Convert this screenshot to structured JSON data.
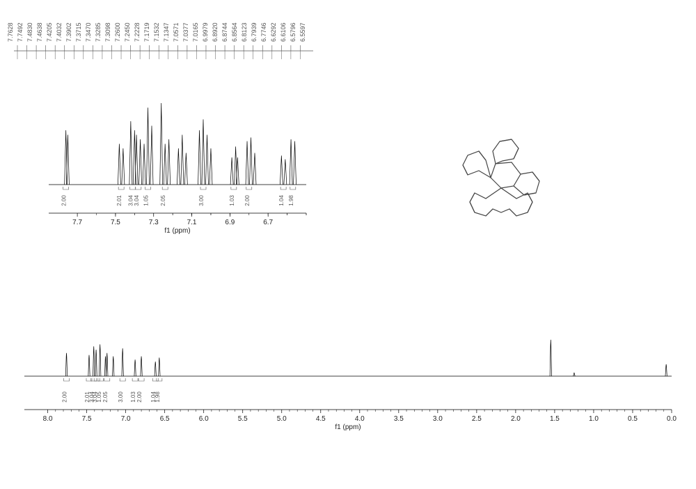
{
  "peak_values": [
    "7.7628",
    "7.7492",
    "7.4830",
    "7.4638",
    "7.4205",
    "7.4032",
    "7.3902",
    "7.3715",
    "7.3470",
    "7.3285",
    "7.3098",
    "7.2600",
    "7.2450",
    "7.2228",
    "7.1719",
    "7.1532",
    "7.1347",
    "7.0571",
    "7.0377",
    "7.0165",
    "6.9979",
    "6.8920",
    "6.8744",
    "6.8564",
    "6.8123",
    "6.7939",
    "6.7746",
    "6.6292",
    "6.6106",
    "6.5796",
    "6.5597"
  ],
  "main_spectrum": {
    "axis_label": "f1 (ppm)",
    "x_min": 0.0,
    "x_max": 8.3,
    "ticks": [
      "8.0",
      "7.5",
      "7.0",
      "6.5",
      "6.0",
      "5.5",
      "5.0",
      "4.5",
      "4.0",
      "3.5",
      "3.0",
      "2.5",
      "2.0",
      "1.5",
      "1.0",
      "0.5",
      "0.0"
    ],
    "baseline_color": "#000000",
    "peak_groups": [
      {
        "x": 7.76,
        "height": 0.35
      },
      {
        "x": 7.47,
        "height": 0.32
      },
      {
        "x": 7.41,
        "height": 0.45
      },
      {
        "x": 7.38,
        "height": 0.4
      },
      {
        "x": 7.33,
        "height": 0.48
      },
      {
        "x": 7.26,
        "height": 0.3
      },
      {
        "x": 7.24,
        "height": 0.35
      },
      {
        "x": 7.16,
        "height": 0.3
      },
      {
        "x": 7.04,
        "height": 0.42
      },
      {
        "x": 6.88,
        "height": 0.25
      },
      {
        "x": 6.8,
        "height": 0.3
      },
      {
        "x": 6.62,
        "height": 0.22
      },
      {
        "x": 6.57,
        "height": 0.28
      },
      {
        "x": 1.55,
        "height": 0.55
      },
      {
        "x": 1.25,
        "height": 0.05
      },
      {
        "x": 0.07,
        "height": 0.18
      }
    ],
    "integrals": [
      "2.00",
      "2.01",
      "3.04",
      "3.04",
      "1.05",
      "2.05",
      "3.00",
      "1.03",
      "2.00",
      "1.04",
      "1.98"
    ],
    "integral_positions": [
      7.76,
      7.47,
      7.41,
      7.37,
      7.32,
      7.24,
      7.04,
      6.88,
      6.8,
      6.62,
      6.57
    ]
  },
  "inset_spectrum": {
    "axis_label": "f1 (ppm)",
    "x_min": 6.5,
    "x_max": 7.85,
    "ticks": [
      "7.7",
      "7.5",
      "7.3",
      "7.1",
      "6.9",
      "6.7"
    ],
    "baseline_color": "#000000",
    "peak_groups": [
      {
        "x": 7.76,
        "height": 0.6,
        "w": 2
      },
      {
        "x": 7.75,
        "height": 0.55,
        "w": 2
      },
      {
        "x": 7.48,
        "height": 0.45,
        "w": 2
      },
      {
        "x": 7.46,
        "height": 0.4,
        "w": 2
      },
      {
        "x": 7.42,
        "height": 0.7,
        "w": 2
      },
      {
        "x": 7.4,
        "height": 0.6,
        "w": 2
      },
      {
        "x": 7.39,
        "height": 0.55,
        "w": 2
      },
      {
        "x": 7.37,
        "height": 0.5,
        "w": 2
      },
      {
        "x": 7.35,
        "height": 0.45,
        "w": 2
      },
      {
        "x": 7.33,
        "height": 0.85,
        "w": 2
      },
      {
        "x": 7.31,
        "height": 0.65,
        "w": 2
      },
      {
        "x": 7.26,
        "height": 0.9,
        "w": 2
      },
      {
        "x": 7.24,
        "height": 0.45,
        "w": 2
      },
      {
        "x": 7.22,
        "height": 0.5,
        "w": 2
      },
      {
        "x": 7.17,
        "height": 0.4,
        "w": 2
      },
      {
        "x": 7.15,
        "height": 0.55,
        "w": 2
      },
      {
        "x": 7.13,
        "height": 0.35,
        "w": 2
      },
      {
        "x": 7.06,
        "height": 0.6,
        "w": 2
      },
      {
        "x": 7.04,
        "height": 0.72,
        "w": 2
      },
      {
        "x": 7.02,
        "height": 0.55,
        "w": 2
      },
      {
        "x": 7.0,
        "height": 0.4,
        "w": 2
      },
      {
        "x": 6.89,
        "height": 0.3,
        "w": 2
      },
      {
        "x": 6.87,
        "height": 0.42,
        "w": 2
      },
      {
        "x": 6.86,
        "height": 0.3,
        "w": 2
      },
      {
        "x": 6.81,
        "height": 0.48,
        "w": 2
      },
      {
        "x": 6.79,
        "height": 0.52,
        "w": 2
      },
      {
        "x": 6.77,
        "height": 0.35,
        "w": 2
      },
      {
        "x": 6.63,
        "height": 0.32,
        "w": 2
      },
      {
        "x": 6.61,
        "height": 0.28,
        "w": 2
      },
      {
        "x": 6.58,
        "height": 0.5,
        "w": 2
      },
      {
        "x": 6.56,
        "height": 0.48,
        "w": 2
      }
    ],
    "integrals": [
      "2.00",
      "2.01",
      "3.04",
      "3.04",
      "1.05",
      "2.05",
      "3.00",
      "1.03",
      "2.00",
      "1.04",
      "1.98"
    ],
    "integral_positions": [
      7.76,
      7.47,
      7.41,
      7.38,
      7.33,
      7.24,
      7.04,
      6.88,
      6.8,
      6.62,
      6.57
    ]
  },
  "colors": {
    "background": "#ffffff",
    "line": "#000000",
    "text": "#333333",
    "molecule": "#444444"
  }
}
